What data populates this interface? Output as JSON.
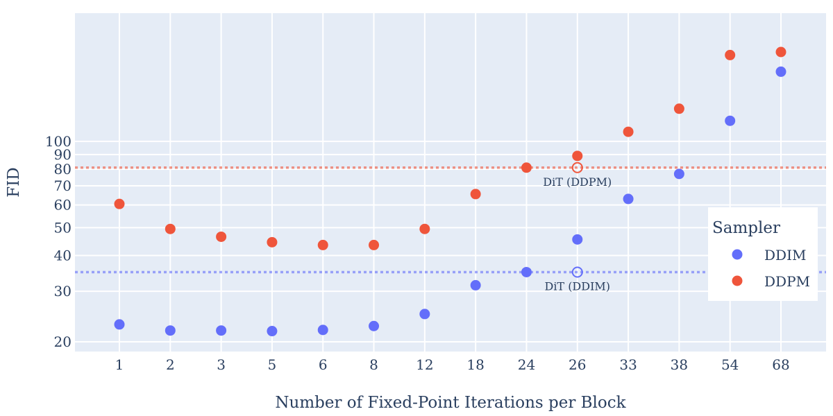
{
  "chart_data": {
    "type": "scatter",
    "title": "",
    "xlabel": "Number of Fixed-Point Iterations per Block",
    "ylabel": "FID",
    "x_scale": "categorical",
    "y_scale": "log",
    "ylim": [
      18.5,
      280
    ],
    "categories": [
      "1",
      "2",
      "3",
      "5",
      "6",
      "8",
      "12",
      "18",
      "24",
      "26",
      "33",
      "38",
      "54",
      "68"
    ],
    "y_ticks": [
      20,
      30,
      40,
      50,
      60,
      70,
      80,
      90,
      100
    ],
    "y_tick_labels": [
      "20",
      "30",
      "40",
      "50",
      "60",
      "70",
      "80",
      "90",
      "100"
    ],
    "series": [
      {
        "name": "DDIM",
        "color": "#636efa",
        "points": [
          {
            "x": "1",
            "y": 23.0
          },
          {
            "x": "2",
            "y": 21.9
          },
          {
            "x": "3",
            "y": 21.9
          },
          {
            "x": "5",
            "y": 21.8
          },
          {
            "x": "6",
            "y": 22.0
          },
          {
            "x": "8",
            "y": 22.7
          },
          {
            "x": "12",
            "y": 25.0
          },
          {
            "x": "18",
            "y": 31.5
          },
          {
            "x": "24",
            "y": 35.0
          },
          {
            "x": "26",
            "y": 45.5
          },
          {
            "x": "33",
            "y": 63.0
          },
          {
            "x": "38",
            "y": 77.0
          },
          {
            "x": "54",
            "y": 118.0
          },
          {
            "x": "68",
            "y": 175.0
          }
        ]
      },
      {
        "name": "DDPM",
        "color": "#ef553b",
        "points": [
          {
            "x": "1",
            "y": 60.5
          },
          {
            "x": "2",
            "y": 49.5
          },
          {
            "x": "3",
            "y": 46.5
          },
          {
            "x": "5",
            "y": 44.5
          },
          {
            "x": "6",
            "y": 43.5
          },
          {
            "x": "8",
            "y": 43.5
          },
          {
            "x": "12",
            "y": 49.5
          },
          {
            "x": "18",
            "y": 65.5
          },
          {
            "x": "24",
            "y": 81.0
          },
          {
            "x": "26",
            "y": 89.0
          },
          {
            "x": "33",
            "y": 108.0
          },
          {
            "x": "38",
            "y": 130.0
          },
          {
            "x": "54",
            "y": 200.0
          },
          {
            "x": "68",
            "y": 205.0
          }
        ]
      }
    ],
    "reference_lines": [
      {
        "series": "DDIM",
        "y": 35.0,
        "label": "DiT (DDIM)",
        "marker_x": "26",
        "color": "#636efa"
      },
      {
        "series": "DDPM",
        "y": 81.0,
        "label": "DiT (DDPM)",
        "marker_x": "26",
        "color": "#ef553b"
      }
    ],
    "legend": {
      "title": "Sampler",
      "position": "right",
      "entries": [
        {
          "name": "DDIM",
          "color": "#636efa"
        },
        {
          "name": "DDPM",
          "color": "#ef553b"
        }
      ]
    },
    "grid": true,
    "plot_background": "#e5ecf6"
  }
}
